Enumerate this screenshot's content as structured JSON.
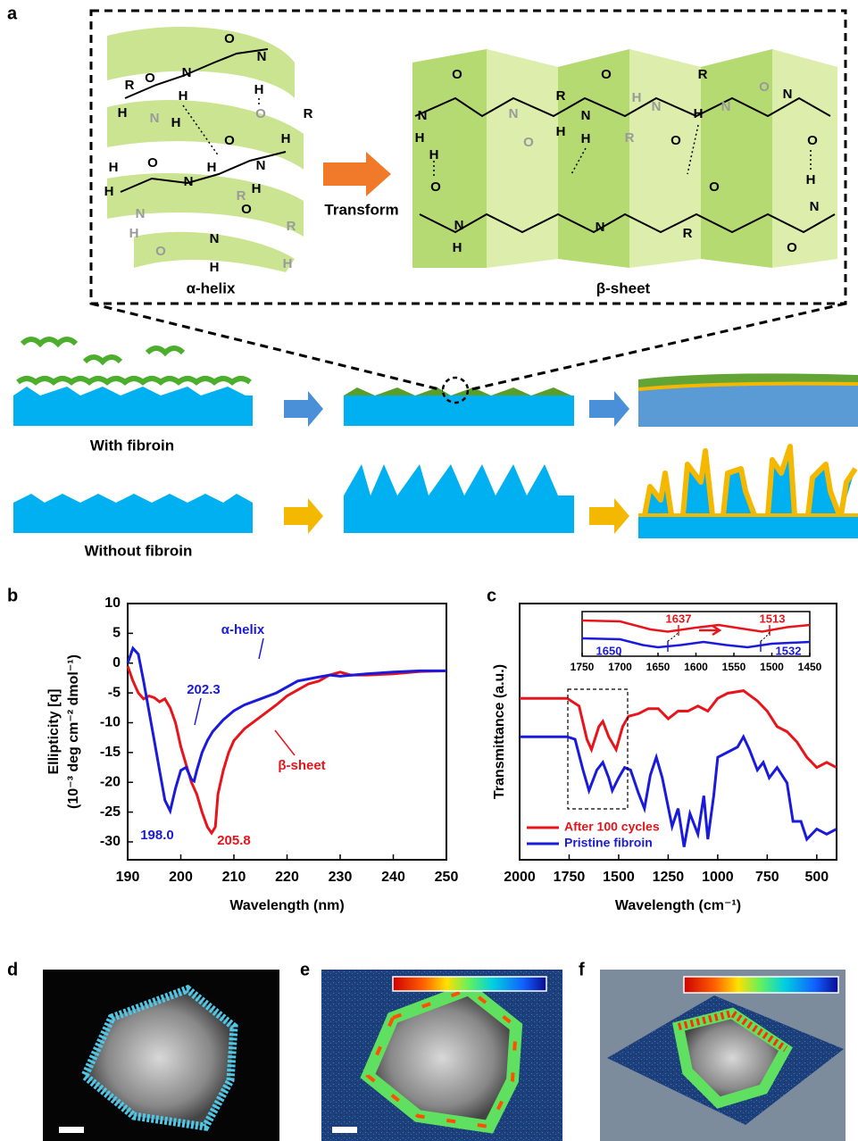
{
  "figure": {
    "panel_labels": [
      "a",
      "b",
      "c",
      "d",
      "e",
      "f"
    ],
    "panel_a": {
      "transform": "Transform",
      "helix_label": "α-helix",
      "sheet_label": "β-sheet",
      "with": "With  fibroin",
      "without": "Without  fibroin",
      "helix_atoms": [
        "O",
        "N",
        "H",
        "O",
        "N",
        "H",
        "R",
        "H",
        "H",
        "N",
        "O",
        "O",
        "N",
        "H",
        "R",
        "H",
        "O",
        "N",
        "H",
        "H",
        "H",
        "N",
        "O",
        "N",
        "H",
        "R",
        "O",
        "H",
        "R",
        "H"
      ],
      "sheet_atoms": [
        "O",
        "N",
        "H",
        "H",
        "O",
        "N",
        "H",
        "N",
        "O",
        "R",
        "H",
        "N",
        "H",
        "O",
        "H",
        "R",
        "N",
        "O",
        "R",
        "H",
        "N",
        "O",
        "N",
        "O",
        "H",
        "N",
        "O",
        "R",
        "O",
        "N"
      ]
    }
  },
  "chart_data": [
    {
      "type": "line",
      "xlabel": "Wavelength  (nm)",
      "ylabel": [
        "Ellipticity [q]",
        "(10⁻³ deg cm⁻² dmol⁻¹)"
      ],
      "xlim": [
        190,
        250
      ],
      "ylim": [
        -33,
        10
      ],
      "xticks": [
        190,
        200,
        210,
        220,
        230,
        240,
        250
      ],
      "yticks": [
        10,
        5,
        0,
        -5,
        -10,
        -15,
        -20,
        -25,
        -30
      ],
      "series": [
        {
          "name": "β-sheet",
          "color": "#e8141b",
          "x": [
            190,
            191,
            192,
            193,
            194,
            195,
            196,
            197,
            198,
            199,
            200,
            201,
            202,
            203,
            204,
            205,
            205.8,
            206.5,
            207,
            208,
            209,
            210,
            212,
            215,
            218,
            220,
            222,
            224,
            226,
            228,
            230,
            232,
            235,
            240,
            245,
            250
          ],
          "values": [
            -0.5,
            -3,
            -5,
            -6,
            -5.5,
            -5.8,
            -6.5,
            -6,
            -7.5,
            -10,
            -14,
            -17,
            -20,
            -22,
            -25,
            -27.5,
            -28.5,
            -27.5,
            -22,
            -18,
            -15,
            -13,
            -11,
            -9,
            -7,
            -5.5,
            -4.5,
            -3.5,
            -3,
            -2,
            -1.5,
            -2,
            -2,
            -1.8,
            -1.4,
            -1.3
          ]
        },
        {
          "name": "α-helix",
          "color": "#1a1adc",
          "x": [
            190,
            191,
            192,
            193,
            194,
            195,
            196,
            197,
            198,
            199,
            200,
            201,
            202,
            202.5,
            203,
            204,
            205,
            206,
            208,
            210,
            212,
            215,
            218,
            220,
            222,
            225,
            228,
            230,
            235,
            240,
            245,
            250
          ],
          "values": [
            0,
            2.5,
            1.5,
            -3,
            -8,
            -13,
            -18,
            -23,
            -24.8,
            -21,
            -18,
            -17.5,
            -19.5,
            -19.8,
            -18,
            -15,
            -13,
            -11.5,
            -9.5,
            -8,
            -7,
            -6,
            -5,
            -4,
            -3,
            -2.5,
            -2,
            -2.2,
            -1.8,
            -1.5,
            -1.3,
            -1.3
          ]
        }
      ],
      "annotations": [
        {
          "text": "α-helix",
          "color": "#1a1adc"
        },
        {
          "text": "β-sheet",
          "color": "#e8141b"
        },
        {
          "text": "202.3",
          "color": "#1a1adc"
        },
        {
          "text": "198.0",
          "color": "#1a1adc"
        },
        {
          "text": "205.8",
          "color": "#e8141b"
        }
      ]
    },
    {
      "type": "line",
      "xlabel": "Wavelength  (cm⁻¹)",
      "ylabel": [
        "Transmittance  (a.u.)"
      ],
      "xlim": [
        2000,
        400
      ],
      "ylim": [
        0,
        100
      ],
      "xticks": [
        2000,
        1750,
        1500,
        1250,
        1000,
        750,
        500
      ],
      "series": [
        {
          "name": "After  100  cycles",
          "color": "#e8141b",
          "x": [
            2000,
            1760,
            1700,
            1660,
            1637,
            1600,
            1580,
            1550,
            1513,
            1480,
            1450,
            1400,
            1350,
            1300,
            1250,
            1200,
            1150,
            1100,
            1050,
            1000,
            950,
            870,
            800,
            750,
            700,
            650,
            600,
            550,
            500,
            450,
            400
          ],
          "values": [
            63,
            63,
            60,
            47,
            43,
            52,
            54,
            48,
            43,
            52,
            56,
            57,
            59,
            59,
            55,
            58,
            58,
            60,
            58,
            63,
            65,
            66,
            62,
            58,
            52,
            50,
            46,
            40,
            36,
            38,
            36
          ]
        },
        {
          "name": "Pristine  fibroin",
          "color": "#1a1adc",
          "x": [
            2000,
            1760,
            1720,
            1680,
            1650,
            1610,
            1580,
            1550,
            1532,
            1500,
            1470,
            1440,
            1400,
            1370,
            1340,
            1310,
            1280,
            1230,
            1200,
            1170,
            1140,
            1100,
            1070,
            1050,
            1020,
            1000,
            950,
            900,
            870,
            840,
            800,
            770,
            740,
            700,
            650,
            620,
            580,
            550,
            500,
            450,
            400
          ],
          "values": [
            48,
            48,
            47,
            35,
            27,
            35,
            38,
            32,
            27,
            32,
            36,
            35,
            26,
            20,
            33,
            40,
            32,
            13,
            20,
            5,
            18,
            10,
            25,
            8,
            25,
            40,
            42,
            44,
            48,
            43,
            35,
            38,
            32,
            36,
            30,
            15,
            15,
            8,
            12,
            10,
            12
          ]
        }
      ],
      "legend": "lower-left"
    },
    {
      "type": "line",
      "xlim": [
        1750,
        1450
      ],
      "ylim": [
        0,
        100
      ],
      "xticks": [
        1750,
        1700,
        1650,
        1600,
        1550,
        1500,
        1450
      ],
      "series": [
        {
          "color": "#e8141b",
          "x": [
            1750,
            1700,
            1660,
            1637,
            1600,
            1570,
            1540,
            1513,
            1480,
            1450
          ],
          "values": [
            80,
            78,
            60,
            55,
            64,
            70,
            62,
            55,
            65,
            70
          ]
        },
        {
          "color": "#1a1adc",
          "x": [
            1750,
            1700,
            1670,
            1650,
            1620,
            1590,
            1560,
            1532,
            1500,
            1450
          ],
          "values": [
            40,
            38,
            25,
            20,
            25,
            32,
            25,
            20,
            28,
            32
          ]
        }
      ],
      "annotations": [
        {
          "text": "1637",
          "color": "#e8141b"
        },
        {
          "text": "1513",
          "color": "#e8141b"
        },
        {
          "text": "1650",
          "color": "#1a1adc"
        },
        {
          "text": "1532",
          "color": "#1a1adc"
        }
      ]
    }
  ]
}
